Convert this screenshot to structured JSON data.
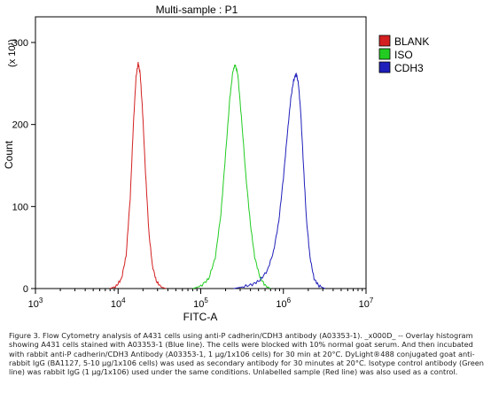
{
  "chart_data": {
    "type": "line",
    "title": "Multi-sample : P1",
    "xlabel": "FITC-A",
    "ylabel": "Count",
    "y_multiplier": "(x 10¹)",
    "x_scale": "log",
    "xlim": [
      1000,
      10000000
    ],
    "ylim": [
      0,
      320
    ],
    "x_ticks": [
      {
        "exp": "3",
        "value": 1000
      },
      {
        "exp": "4",
        "value": 10000
      },
      {
        "exp": "5",
        "value": 100000
      },
      {
        "exp": "6",
        "value": 1000000
      },
      {
        "exp": "7",
        "value": 10000000
      }
    ],
    "y_ticks": [
      0,
      100,
      200,
      300
    ],
    "legend_position": "right",
    "series": [
      {
        "name": "BLANK",
        "color": "#d42020",
        "peak_x": 17500,
        "peak_y": 275,
        "points": [
          [
            8000,
            0
          ],
          [
            9500,
            3
          ],
          [
            11000,
            12
          ],
          [
            12500,
            40
          ],
          [
            14000,
            110
          ],
          [
            15300,
            200
          ],
          [
            16500,
            258
          ],
          [
            17500,
            275
          ],
          [
            18500,
            262
          ],
          [
            19800,
            215
          ],
          [
            21500,
            140
          ],
          [
            23500,
            70
          ],
          [
            26000,
            28
          ],
          [
            29000,
            9
          ],
          [
            33000,
            2
          ],
          [
            38000,
            0
          ]
        ]
      },
      {
        "name": "ISO",
        "color": "#22cc22",
        "peak_x": 260000,
        "peak_y": 273,
        "points": [
          [
            80000,
            0
          ],
          [
            100000,
            3
          ],
          [
            125000,
            12
          ],
          [
            150000,
            38
          ],
          [
            175000,
            90
          ],
          [
            200000,
            165
          ],
          [
            225000,
            232
          ],
          [
            245000,
            265
          ],
          [
            260000,
            273
          ],
          [
            280000,
            262
          ],
          [
            310000,
            210
          ],
          [
            350000,
            140
          ],
          [
            400000,
            78
          ],
          [
            450000,
            38
          ],
          [
            520000,
            14
          ],
          [
            600000,
            4
          ],
          [
            700000,
            0
          ]
        ]
      },
      {
        "name": "CDH3",
        "color": "#1f1fbb",
        "peak_x": 1430000,
        "peak_y": 262,
        "points": [
          [
            250000,
            0
          ],
          [
            320000,
            2
          ],
          [
            420000,
            5
          ],
          [
            520000,
            10
          ],
          [
            640000,
            22
          ],
          [
            760000,
            45
          ],
          [
            880000,
            82
          ],
          [
            1000000,
            135
          ],
          [
            1120000,
            190
          ],
          [
            1230000,
            232
          ],
          [
            1330000,
            254
          ],
          [
            1430000,
            262
          ],
          [
            1520000,
            250
          ],
          [
            1620000,
            215
          ],
          [
            1750000,
            150
          ],
          [
            1900000,
            85
          ],
          [
            2100000,
            38
          ],
          [
            2350000,
            12
          ],
          [
            2700000,
            3
          ],
          [
            3200000,
            0
          ]
        ]
      }
    ]
  },
  "caption": "Figure 3. Flow Cytometry analysis of A431 cells using anti-P cadherin/CDH3 antibody (A03353-1). _x000D_ -- Overlay histogram showing A431 cells stained with A03353-1 (Blue line). The cells were blocked with 10% normal goat serum. And then incubated with rabbit anti-P cadherin/CDH3 Antibody (A03353-1, 1 μg/1x106 cells) for 30 min at 20°C. DyLight®488 conjugated goat anti-rabbit IgG (BA1127, 5-10 μg/1x106 cells) was used as secondary antibody for 30 minutes at 20°C. Isotype control antibody (Green line) was rabbit IgG (1 μg/1x106) used under the same conditions. Unlabelled sample (Red line) was also used as a control."
}
